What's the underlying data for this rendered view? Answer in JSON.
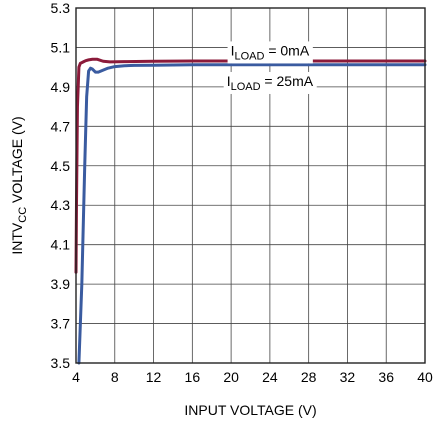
{
  "chart_data": {
    "type": "line",
    "xlabel": "INPUT VOLTAGE (V)",
    "ylabel": {
      "pre": "INTV",
      "sub": "CC",
      "post": " VOLTAGE (V)"
    },
    "xlim": [
      4,
      40
    ],
    "ylim": [
      3.5,
      5.3
    ],
    "xticks": [
      4,
      8,
      12,
      16,
      20,
      24,
      28,
      32,
      36,
      40
    ],
    "yticks": [
      3.5,
      3.7,
      3.9,
      4.1,
      4.3,
      4.5,
      4.7,
      4.9,
      5.1,
      5.3
    ],
    "ytick_labels": [
      "3.5",
      "3.7",
      "3.9",
      "4.1",
      "4.3",
      "4.5",
      "4.7",
      "4.9",
      "5.1",
      "5.3"
    ],
    "grid": true,
    "series": [
      {
        "name": {
          "pre": "I",
          "sub": "LOAD",
          "post": " = 0mA"
        },
        "color": "#8B1A3A",
        "x": [
          4.0,
          4.05,
          4.15,
          4.3,
          4.45,
          4.6,
          4.8,
          5.0,
          5.3,
          5.7,
          6.2,
          6.8,
          7.5,
          9,
          12,
          16,
          24,
          32,
          40
        ],
        "y": [
          3.96,
          4.3,
          4.8,
          5.0,
          5.02,
          5.023,
          5.028,
          5.033,
          5.037,
          5.04,
          5.04,
          5.03,
          5.027,
          5.028,
          5.03,
          5.031,
          5.031,
          5.031,
          5.031
        ]
      },
      {
        "name": {
          "pre": "I",
          "sub": "LOAD",
          "post": " = 25mA"
        },
        "color": "#3A5BA0",
        "x": [
          4.3,
          4.6,
          4.9,
          5.1,
          5.3,
          5.5,
          5.7,
          6.0,
          6.3,
          6.8,
          7.3,
          8,
          9,
          10,
          12,
          16,
          24,
          32,
          40
        ],
        "y": [
          3.5,
          3.9,
          4.5,
          4.85,
          4.98,
          4.995,
          4.99,
          4.975,
          4.975,
          4.985,
          4.995,
          5.003,
          5.007,
          5.009,
          5.01,
          5.012,
          5.012,
          5.012,
          5.012
        ]
      }
    ],
    "annotations": [
      {
        "series": 0,
        "x": 24,
        "y": 5.085
      },
      {
        "series": 1,
        "x": 24,
        "y": 4.93
      }
    ]
  }
}
